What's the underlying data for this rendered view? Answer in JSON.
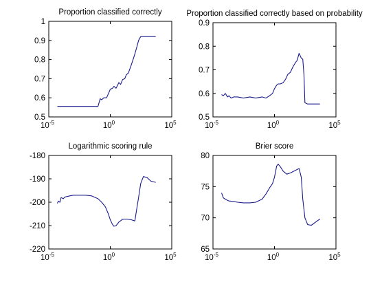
{
  "figure": {
    "background": "#ffffff",
    "line_color": "#1a1a8c"
  },
  "chart_data": [
    {
      "type": "line",
      "title": "Proportion classified correctly",
      "xscale": "log",
      "xlim": [
        1e-05,
        100000
      ],
      "ylim": [
        0.5,
        1.0
      ],
      "xticks": [
        {
          "base": "10",
          "exp": "-5"
        },
        {
          "base": "10",
          "exp": "0"
        },
        {
          "base": "10",
          "exp": "5"
        }
      ],
      "yticks": [
        "0.5",
        "0.6",
        "0.7",
        "0.8",
        "0.9",
        "1"
      ],
      "grid": false,
      "series": [
        {
          "x": [
            5e-05,
            0.0001,
            0.001,
            0.01,
            0.05,
            0.1,
            0.15,
            0.2,
            0.3,
            0.5,
            0.8,
            1.0,
            1.5,
            2.0,
            3.0,
            5.0,
            7.0,
            10,
            15,
            20,
            30,
            50,
            80,
            100,
            150,
            200,
            300,
            500,
            1000,
            5000
          ],
          "y": [
            0.555,
            0.555,
            0.555,
            0.555,
            0.555,
            0.555,
            0.595,
            0.59,
            0.6,
            0.6,
            0.63,
            0.645,
            0.65,
            0.66,
            0.65,
            0.68,
            0.67,
            0.695,
            0.7,
            0.72,
            0.73,
            0.77,
            0.81,
            0.83,
            0.87,
            0.9,
            0.92,
            0.92,
            0.92,
            0.92
          ]
        }
      ]
    },
    {
      "type": "line",
      "title": "Proportion classified correctly based on probability",
      "xscale": "log",
      "xlim": [
        1e-05,
        100000
      ],
      "ylim": [
        0.5,
        0.9
      ],
      "xticks": [
        {
          "base": "10",
          "exp": "-5"
        },
        {
          "base": "10",
          "exp": "0"
        },
        {
          "base": "10",
          "exp": "5"
        }
      ],
      "yticks": [
        "0.5",
        "0.6",
        "0.7",
        "0.8",
        "0.9"
      ],
      "grid": false,
      "series": [
        {
          "x": [
            5e-05,
            7e-05,
            0.0001,
            0.00015,
            0.0002,
            0.0003,
            0.0005,
            0.001,
            0.003,
            0.01,
            0.03,
            0.1,
            0.2,
            0.4,
            0.7,
            1.0,
            1.5,
            2.0,
            3.0,
            5.0,
            8.0,
            12,
            20,
            30,
            50,
            70,
            100,
            150,
            200,
            250,
            300,
            500,
            1000,
            5000
          ],
          "y": [
            0.595,
            0.59,
            0.6,
            0.585,
            0.59,
            0.58,
            0.585,
            0.585,
            0.58,
            0.585,
            0.58,
            0.585,
            0.58,
            0.59,
            0.6,
            0.62,
            0.635,
            0.64,
            0.64,
            0.645,
            0.66,
            0.68,
            0.69,
            0.71,
            0.73,
            0.74,
            0.77,
            0.75,
            0.745,
            0.68,
            0.56,
            0.555,
            0.555,
            0.555
          ]
        }
      ]
    },
    {
      "type": "line",
      "title": "Logarithmic scoring rule",
      "xscale": "log",
      "xlim": [
        1e-05,
        100000
      ],
      "ylim": [
        -220,
        -180
      ],
      "xticks": [
        {
          "base": "10",
          "exp": "-5"
        },
        {
          "base": "10",
          "exp": "0"
        },
        {
          "base": "10",
          "exp": "5"
        }
      ],
      "yticks": [
        "-220",
        "-210",
        "-200",
        "-190",
        "-180"
      ],
      "grid": false,
      "series": [
        {
          "x": [
            5e-05,
            6e-05,
            8e-05,
            0.0001,
            0.00015,
            0.0002,
            0.0005,
            0.001,
            0.003,
            0.01,
            0.03,
            0.1,
            0.2,
            0.4,
            0.7,
            1.0,
            1.5,
            2.0,
            3.0,
            5.0,
            10,
            20,
            50,
            100,
            150,
            200,
            300,
            500,
            1000,
            2000,
            5000
          ],
          "y": [
            -200.5,
            -199.5,
            -200,
            -198,
            -198.5,
            -197.8,
            -197.3,
            -197,
            -197,
            -197,
            -197.3,
            -198.5,
            -200,
            -202,
            -205,
            -207.5,
            -209.5,
            -210.3,
            -210,
            -208.5,
            -207.3,
            -207.2,
            -207.5,
            -208,
            -202,
            -198,
            -192,
            -189,
            -189.5,
            -191,
            -191.5
          ]
        }
      ]
    },
    {
      "type": "line",
      "title": "Brier score",
      "xscale": "log",
      "xlim": [
        1e-05,
        100000
      ],
      "ylim": [
        65,
        80
      ],
      "xticks": [
        {
          "base": "10",
          "exp": "-5"
        },
        {
          "base": "10",
          "exp": "0"
        },
        {
          "base": "10",
          "exp": "5"
        }
      ],
      "yticks": [
        "65",
        "70",
        "75",
        "80"
      ],
      "grid": false,
      "series": [
        {
          "x": [
            5e-05,
            7e-05,
            0.0001,
            0.00015,
            0.0002,
            0.0005,
            0.001,
            0.003,
            0.01,
            0.03,
            0.1,
            0.2,
            0.4,
            0.7,
            1.0,
            1.5,
            2.0,
            3.0,
            5.0,
            10,
            20,
            50,
            100,
            150,
            200,
            300,
            500,
            1000,
            3000,
            5000
          ],
          "y": [
            74,
            73.2,
            73,
            72.8,
            72.7,
            72.6,
            72.5,
            72.4,
            72.4,
            72.5,
            73,
            73.8,
            74.8,
            75.5,
            76.5,
            78.3,
            78.6,
            78.2,
            77.5,
            77.0,
            77.2,
            77.6,
            77.9,
            76.5,
            73,
            70,
            68.9,
            68.8,
            69.5,
            69.8
          ]
        }
      ]
    }
  ]
}
